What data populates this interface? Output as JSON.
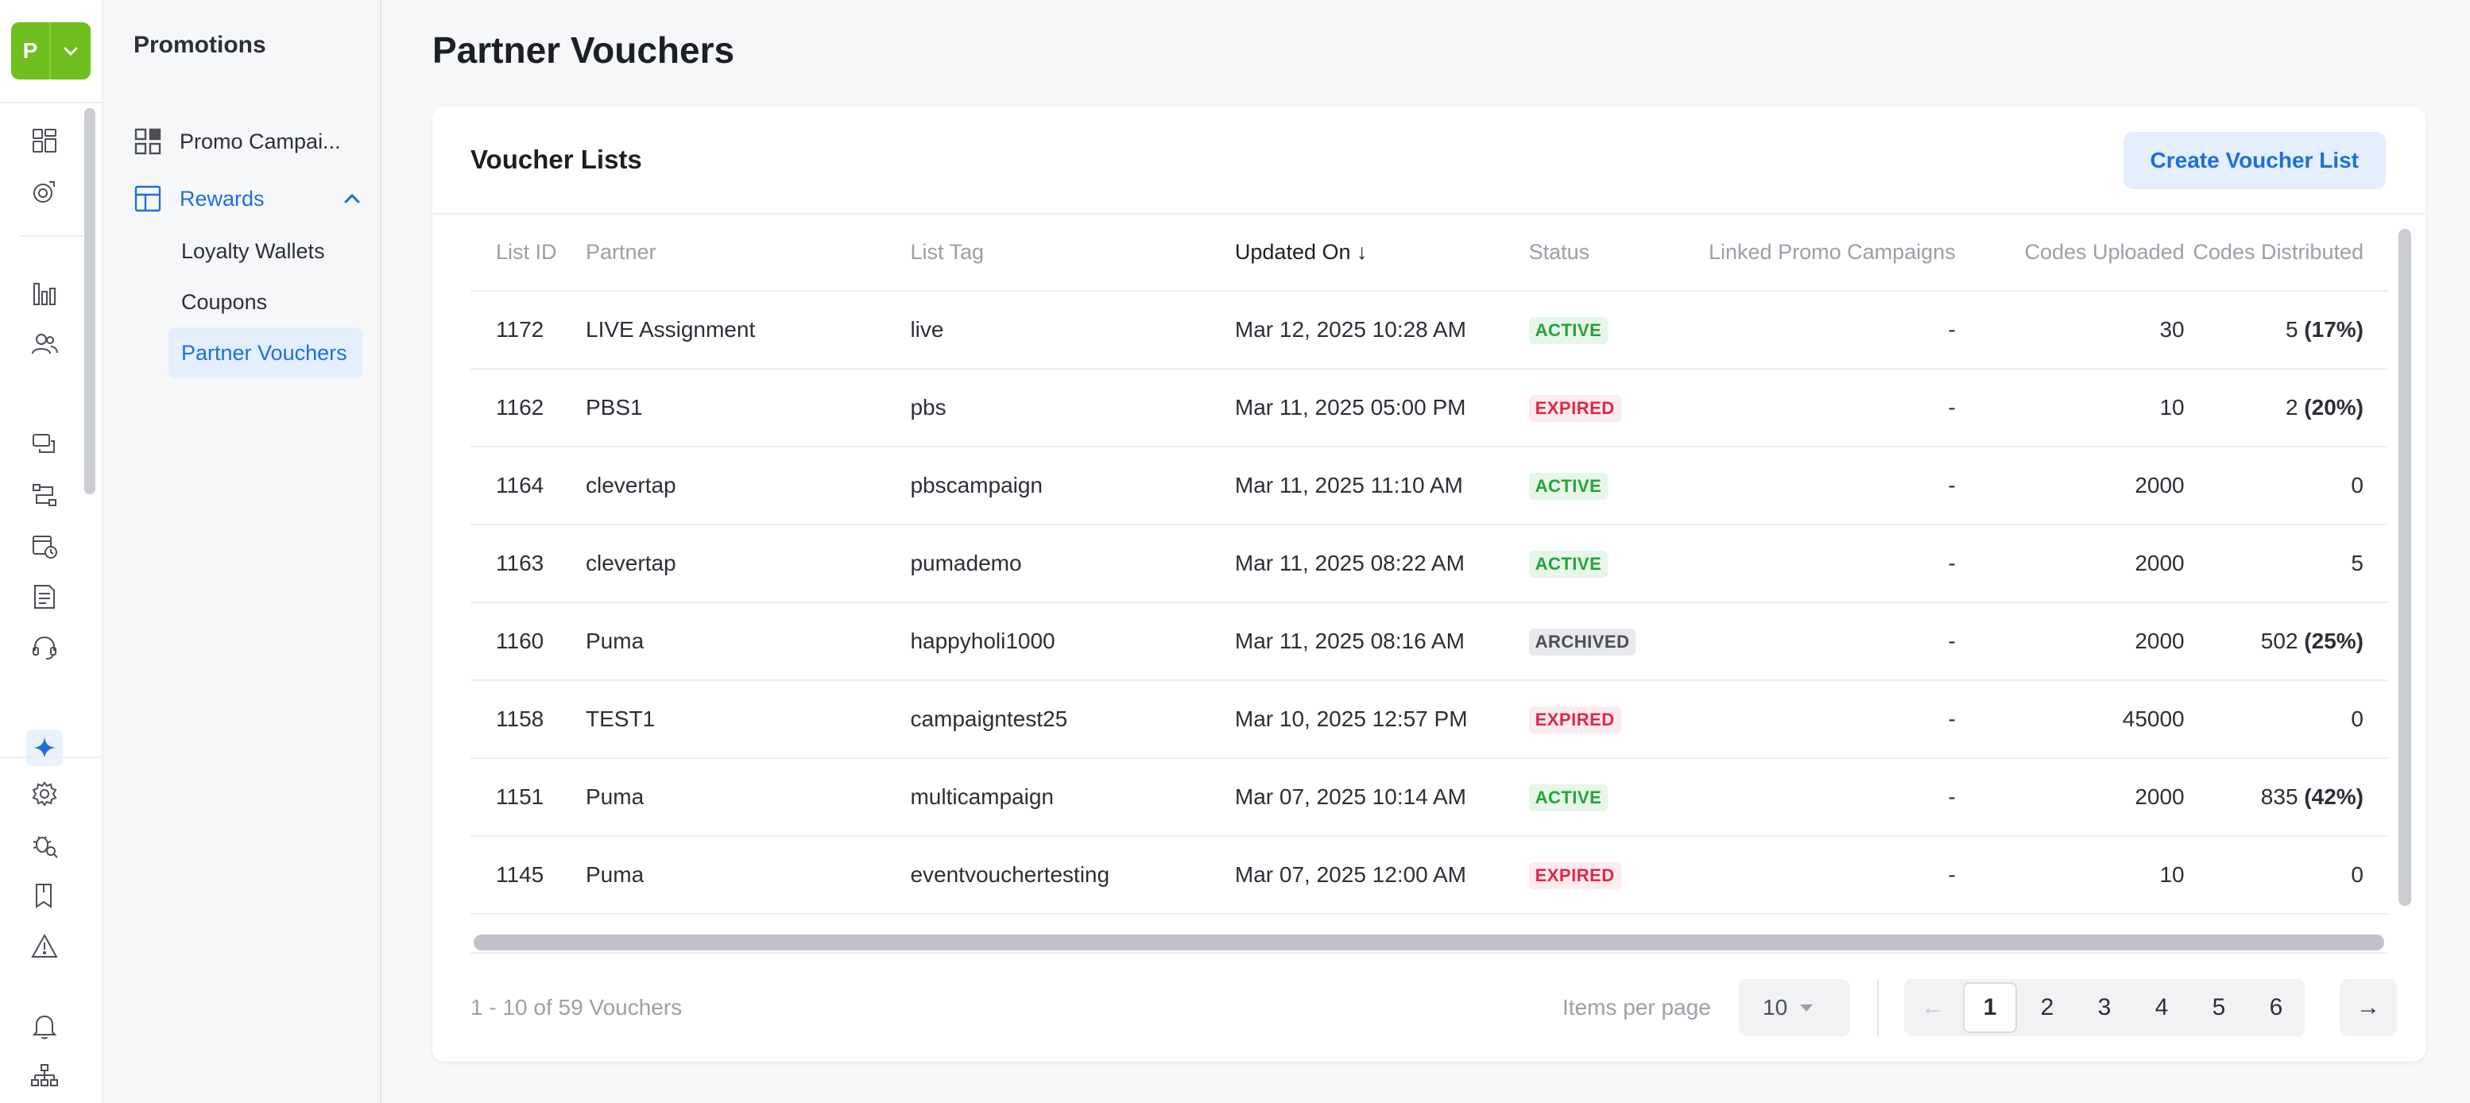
{
  "app": {
    "logo_letter": "P",
    "brand_color": "#6fbf1f",
    "accent_color": "#1e6fd9"
  },
  "rail": {
    "icons": [
      "dashboard-icon",
      "segments-icon",
      "analytics-icon",
      "users-icon",
      "messages-icon",
      "journeys-icon",
      "campaign-history-icon",
      "catalog-icon",
      "support-icon",
      "sparkle-icon",
      "settings-icon",
      "debug-icon",
      "bookmark-icon",
      "alert-icon",
      "bell-icon",
      "org-icon"
    ]
  },
  "subnav": {
    "title": "Promotions",
    "items": [
      {
        "label": "Promo Campai..."
      },
      {
        "label": "Rewards"
      }
    ],
    "sub_items": [
      {
        "label": "Loyalty Wallets"
      },
      {
        "label": "Coupons"
      },
      {
        "label": "Partner Vouchers"
      }
    ]
  },
  "page": {
    "title": "Partner Vouchers"
  },
  "card": {
    "title": "Voucher Lists",
    "create_button": "Create Voucher List"
  },
  "table": {
    "columns": [
      "List ID",
      "Partner",
      "List Tag",
      "Updated On",
      "Status",
      "Linked Promo Campaigns",
      "Codes Uploaded",
      "Codes Distributed"
    ],
    "sort_arrow": "↓",
    "rows": [
      {
        "id": "1172",
        "partner": "LIVE Assignment",
        "tag": "live",
        "updated": "Mar 12, 2025 10:28 AM",
        "status": "ACTIVE",
        "linked": "-",
        "uploaded": "30",
        "distributed": "5",
        "pct": "(17%)"
      },
      {
        "id": "1162",
        "partner": "PBS1",
        "tag": "pbs",
        "updated": "Mar 11, 2025 05:00 PM",
        "status": "EXPIRED",
        "linked": "-",
        "uploaded": "10",
        "distributed": "2",
        "pct": "(20%)"
      },
      {
        "id": "1164",
        "partner": "clevertap",
        "tag": "pbscampaign",
        "updated": "Mar 11, 2025 11:10 AM",
        "status": "ACTIVE",
        "linked": "-",
        "uploaded": "2000",
        "distributed": "0",
        "pct": ""
      },
      {
        "id": "1163",
        "partner": "clevertap",
        "tag": "pumademo",
        "updated": "Mar 11, 2025 08:22 AM",
        "status": "ACTIVE",
        "linked": "-",
        "uploaded": "2000",
        "distributed": "5",
        "pct": ""
      },
      {
        "id": "1160",
        "partner": "Puma",
        "tag": "happyholi1000",
        "updated": "Mar 11, 2025 08:16 AM",
        "status": "ARCHIVED",
        "linked": "-",
        "uploaded": "2000",
        "distributed": "502",
        "pct": "(25%)"
      },
      {
        "id": "1158",
        "partner": "TEST1",
        "tag": "campaigntest25",
        "updated": "Mar 10, 2025 12:57 PM",
        "status": "EXPIRED",
        "linked": "-",
        "uploaded": "45000",
        "distributed": "0",
        "pct": ""
      },
      {
        "id": "1151",
        "partner": "Puma",
        "tag": "multicampaign",
        "updated": "Mar 07, 2025 10:14 AM",
        "status": "ACTIVE",
        "linked": "-",
        "uploaded": "2000",
        "distributed": "835",
        "pct": "(42%)"
      },
      {
        "id": "1145",
        "partner": "Puma",
        "tag": "eventvouchertesting",
        "updated": "Mar 07, 2025 12:00 AM",
        "status": "EXPIRED",
        "linked": "-",
        "uploaded": "10",
        "distributed": "0",
        "pct": ""
      }
    ]
  },
  "footer": {
    "range": "1 - 10 of 59 Vouchers",
    "items_per_page_label": "Items per page",
    "items_per_page_value": "10",
    "prev": "←",
    "next": "→",
    "pages": [
      "1",
      "2",
      "3",
      "4",
      "5",
      "6"
    ],
    "current_page": "1"
  }
}
